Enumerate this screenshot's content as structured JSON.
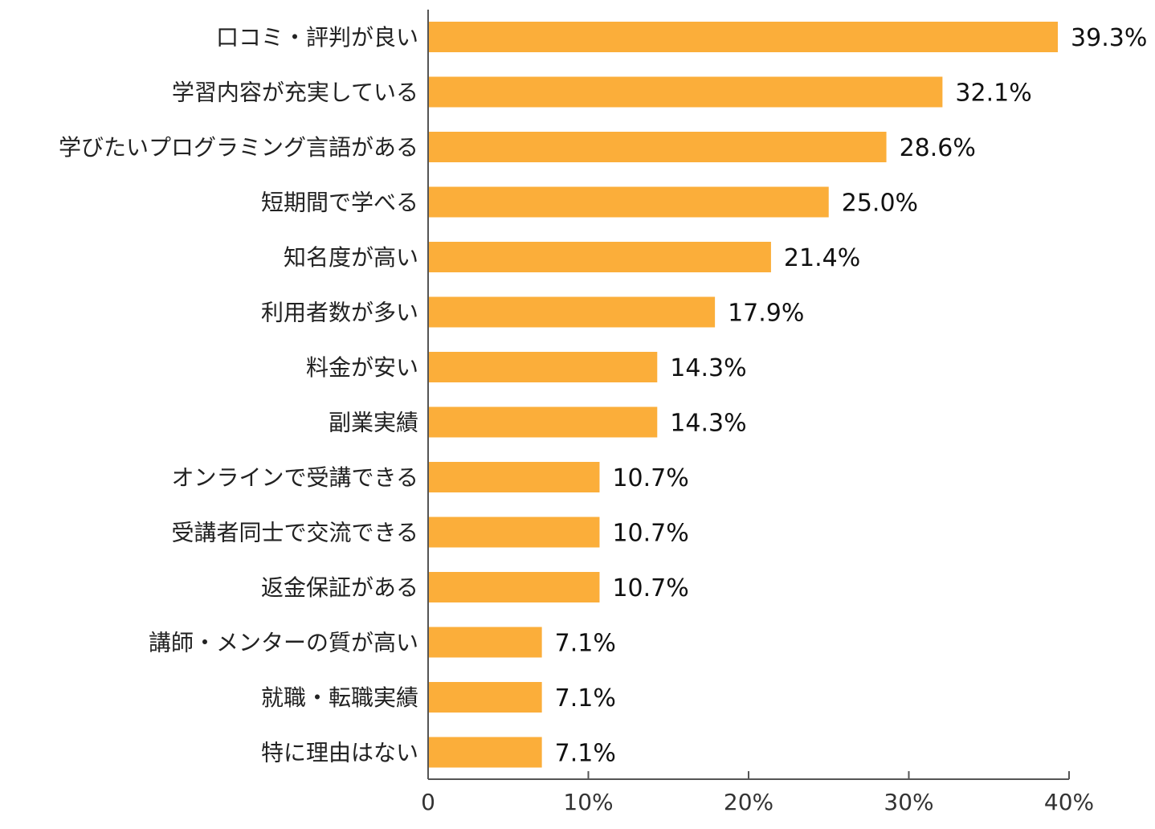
{
  "chart_data": {
    "type": "bar",
    "orientation": "horizontal",
    "categories": [
      "口コミ・評判が良い",
      "学習内容が充実している",
      "学びたいプログラミング言語がある",
      "短期間で学べる",
      "知名度が高い",
      "利用者数が多い",
      "料金が安い",
      "副業実績",
      "オンラインで受講できる",
      "受講者同士で交流できる",
      "返金保証がある",
      "講師・メンターの質が高い",
      "就職・転職実績",
      "特に理由はない"
    ],
    "values": [
      39.3,
      32.1,
      28.6,
      25.0,
      21.4,
      17.9,
      14.3,
      14.3,
      10.7,
      10.7,
      10.7,
      7.1,
      7.1,
      7.1
    ],
    "value_labels": [
      "39.3%",
      "32.1%",
      "28.6%",
      "25.0%",
      "21.4%",
      "17.9%",
      "14.3%",
      "14.3%",
      "10.7%",
      "10.7%",
      "10.7%",
      "7.1%",
      "7.1%",
      "7.1%"
    ],
    "xlim": [
      0,
      40
    ],
    "x_ticks": [
      0,
      10,
      20,
      30,
      40
    ],
    "x_tick_labels": [
      "0",
      "10%",
      "20%",
      "30%",
      "40%"
    ],
    "bar_color": "#FBAE3A",
    "grid": false,
    "legend": "none"
  }
}
